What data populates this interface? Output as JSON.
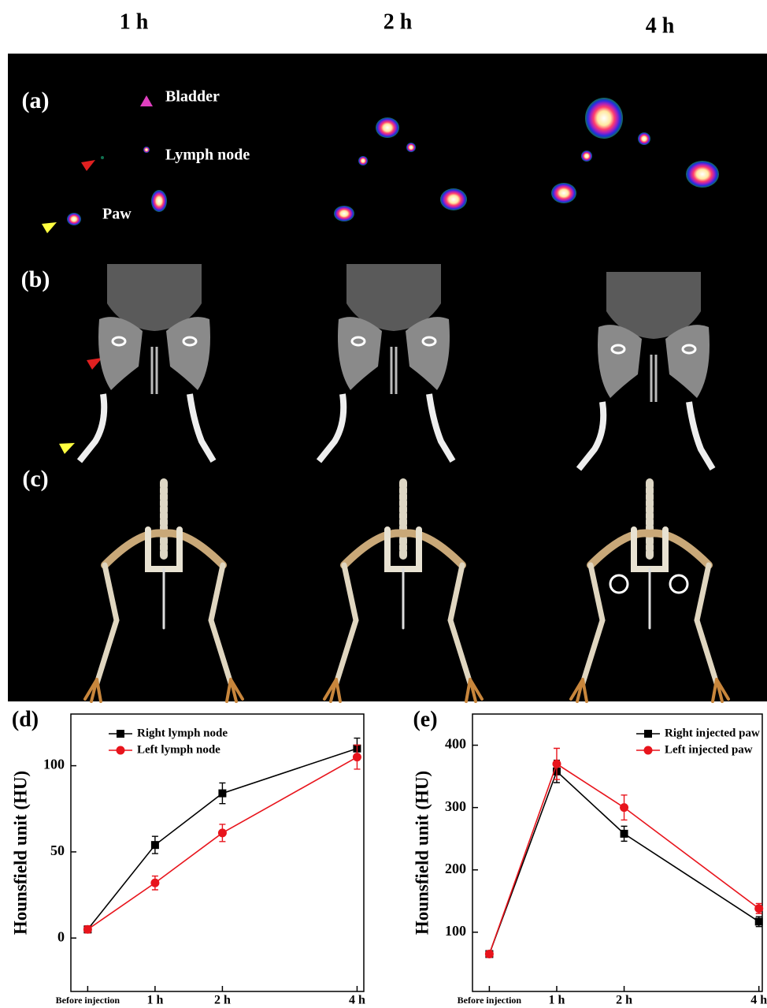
{
  "figure": {
    "column_labels": [
      "1 h",
      "2 h",
      "4 h"
    ],
    "panel_labels": [
      "(a)",
      "(b)",
      "(c)"
    ],
    "annotations": [
      "Bladder",
      "Lymph node",
      "Paw"
    ]
  },
  "chart_data": [
    {
      "type": "line",
      "panel_label": "(d)",
      "y_label": "Hounsfield unit (HU)",
      "x": [
        0,
        1,
        2,
        4
      ],
      "xticks": [
        {
          "value": 0,
          "label": "Before injection"
        },
        {
          "value": 1,
          "label": "1 h"
        },
        {
          "value": 2,
          "label": "2 h"
        },
        {
          "value": 4,
          "label": "4 h"
        }
      ],
      "xlim": [
        -0.25,
        4.1
      ],
      "ylim": [
        -31,
        130
      ],
      "yticks": [
        0,
        50,
        100
      ],
      "legend": "upper left",
      "series": [
        {
          "name": "Right lymph node",
          "color": "#000000",
          "marker": "square",
          "values": [
            5,
            54,
            84,
            110
          ],
          "errors": [
            2,
            5,
            6,
            6
          ]
        },
        {
          "name": "Left lymph node",
          "color": "#e8141c",
          "marker": "circle",
          "values": [
            5,
            32,
            61,
            105
          ],
          "errors": [
            2,
            4,
            5,
            7
          ]
        }
      ]
    },
    {
      "type": "line",
      "panel_label": "(e)",
      "y_label": "Hounsfield unit (HU)",
      "x": [
        0,
        1,
        2,
        4
      ],
      "xticks": [
        {
          "value": 0,
          "label": "Before injection"
        },
        {
          "value": 1,
          "label": "1 h"
        },
        {
          "value": 2,
          "label": "2 h"
        },
        {
          "value": 4,
          "label": "4 h"
        }
      ],
      "xlim": [
        -0.25,
        4.05
      ],
      "ylim": [
        5,
        450
      ],
      "yticks": [
        100,
        200,
        300,
        400
      ],
      "legend": "upper right",
      "series": [
        {
          "name": "Right injected paw",
          "color": "#000000",
          "marker": "square",
          "values": [
            65,
            358,
            258,
            117
          ],
          "errors": [
            5,
            18,
            12,
            8
          ]
        },
        {
          "name": "Left injected paw",
          "color": "#e8141c",
          "marker": "circle",
          "values": [
            65,
            370,
            300,
            138
          ],
          "errors": [
            5,
            25,
            20,
            8
          ]
        }
      ]
    }
  ]
}
